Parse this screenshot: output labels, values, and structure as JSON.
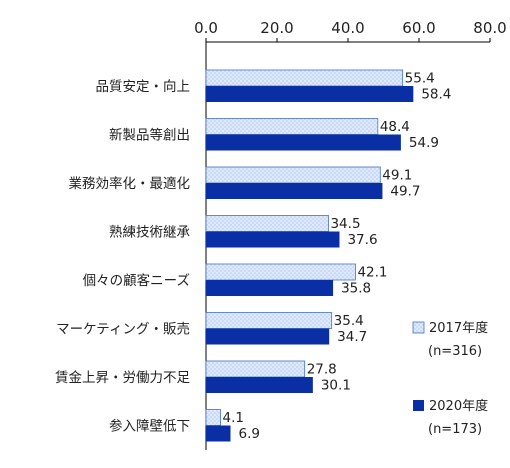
{
  "chart_data": {
    "type": "bar",
    "orientation": "horizontal",
    "categories": [
      "品質安定・向上",
      "新製品等創出",
      "業務効率化・最適化",
      "熟練技術継承",
      "個々の顧客ニーズ",
      "マーケティング・販売",
      "賃金上昇・労働力不足",
      "参入障壁低下"
    ],
    "series": [
      {
        "name": "2017年度",
        "sub": "(n=316)",
        "values": [
          55.4,
          48.4,
          49.1,
          34.5,
          42.1,
          35.4,
          27.8,
          4.1
        ],
        "color": "#c9dbf7",
        "pattern": "dotted",
        "edge": "#4472c4"
      },
      {
        "name": "2020年度",
        "sub": "(n=173)",
        "values": [
          58.4,
          54.9,
          49.7,
          37.6,
          35.8,
          34.7,
          30.1,
          6.9
        ],
        "color": "#0a2ea3"
      }
    ],
    "xlim": [
      0,
      80
    ],
    "xticks": [
      "0.0",
      "20.0",
      "40.0",
      "60.0",
      "80.0"
    ],
    "xaxis_position": "top",
    "grid": false,
    "legend_position": "bottom-right"
  }
}
